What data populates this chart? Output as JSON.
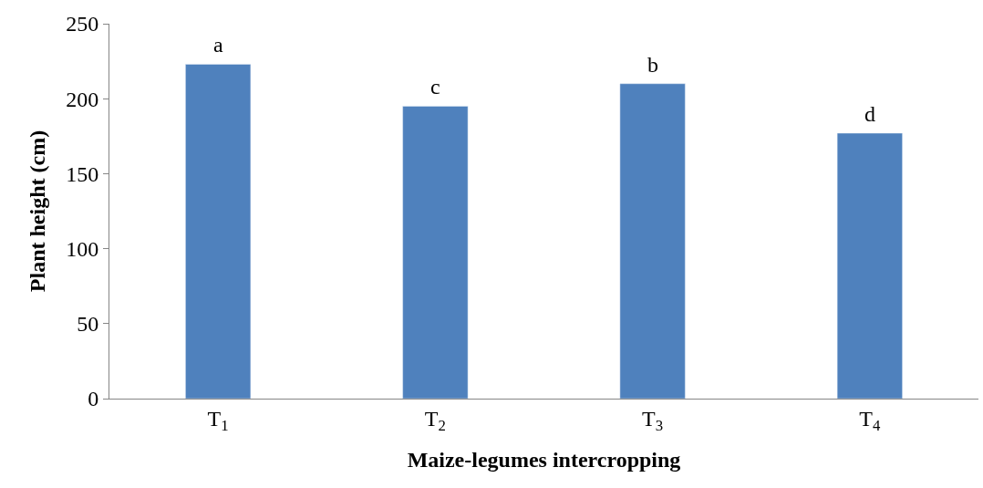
{
  "chart_data": {
    "type": "bar",
    "xlabel": "Maize-legumes intercropping",
    "ylabel": "Plant height (cm)",
    "categories": [
      "T$_{1}$",
      "T$_{2}$",
      "T$_{3}$",
      "T$_{4}$"
    ],
    "values": [
      223,
      195,
      210,
      177
    ],
    "color": "#4f81bd",
    "ylim": [
      0,
      250
    ],
    "yticks": [
      0,
      50,
      100,
      150,
      200,
      250
    ],
    "annotations": [
      {
        "text": "a",
        "x": "T$_{1}$",
        "y": 223
      },
      {
        "text": "c",
        "x": "T$_{2}$",
        "y": 195
      },
      {
        "text": "b",
        "x": "T$_{3}$",
        "y": 210
      },
      {
        "text": "d",
        "x": "T$_{4}$",
        "y": 177
      }
    ]
  }
}
